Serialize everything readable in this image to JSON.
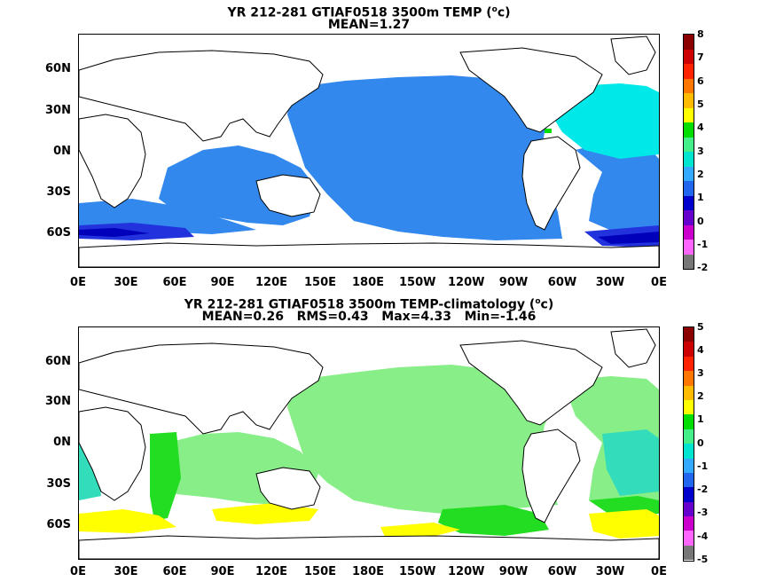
{
  "top": {
    "title_pre": "YR 212-281 GTIAF0518 3500m TEMP (",
    "title_sup": "o",
    "title_post": "c)",
    "stats": "MEAN=1.27",
    "colorbar_labels": [
      "8",
      "7",
      "6",
      "5",
      "4",
      "3",
      "2",
      "1",
      "0",
      "-1",
      "-2"
    ]
  },
  "bottom": {
    "title_pre": "YR 212-281 GTIAF0518 3500m TEMP-climatology (",
    "title_sup": "o",
    "title_post": "c)",
    "stats": "MEAN=0.26   RMS=0.43   Max=4.33   Min=-1.46",
    "colorbar_labels": [
      "5",
      "4",
      "3",
      "2",
      "1",
      "0",
      "-1",
      "-2",
      "-3",
      "-4",
      "-5"
    ]
  },
  "lat_labels": [
    "60N",
    "30N",
    "0N",
    "30S",
    "60S"
  ],
  "lon_labels": [
    "0E",
    "30E",
    "60E",
    "90E",
    "120E",
    "150E",
    "180E",
    "150W",
    "120W",
    "90W",
    "60W",
    "30W",
    "0E"
  ],
  "colorbar_colors": [
    "#8b0000",
    "#cc0000",
    "#ff2200",
    "#ff7700",
    "#ffbb00",
    "#ffff00",
    "#00dd00",
    "#44ee88",
    "#00e5d0",
    "#33aaff",
    "#2266ee",
    "#0000cc",
    "#6600cc",
    "#cc00cc",
    "#ff66ff",
    "#777777"
  ],
  "map_colors": {
    "land": "#ffffff",
    "coast": "#000000",
    "temp_main": "#3388ee",
    "temp_warm": "#00e8e8",
    "temp_cold": "#2233dd",
    "temp_coldest": "#0000bb",
    "anom_main": "#88ee88",
    "anom_strong": "#22dd22",
    "anom_neg": "#33ddbb",
    "anom_pos": "#ffff00"
  }
}
